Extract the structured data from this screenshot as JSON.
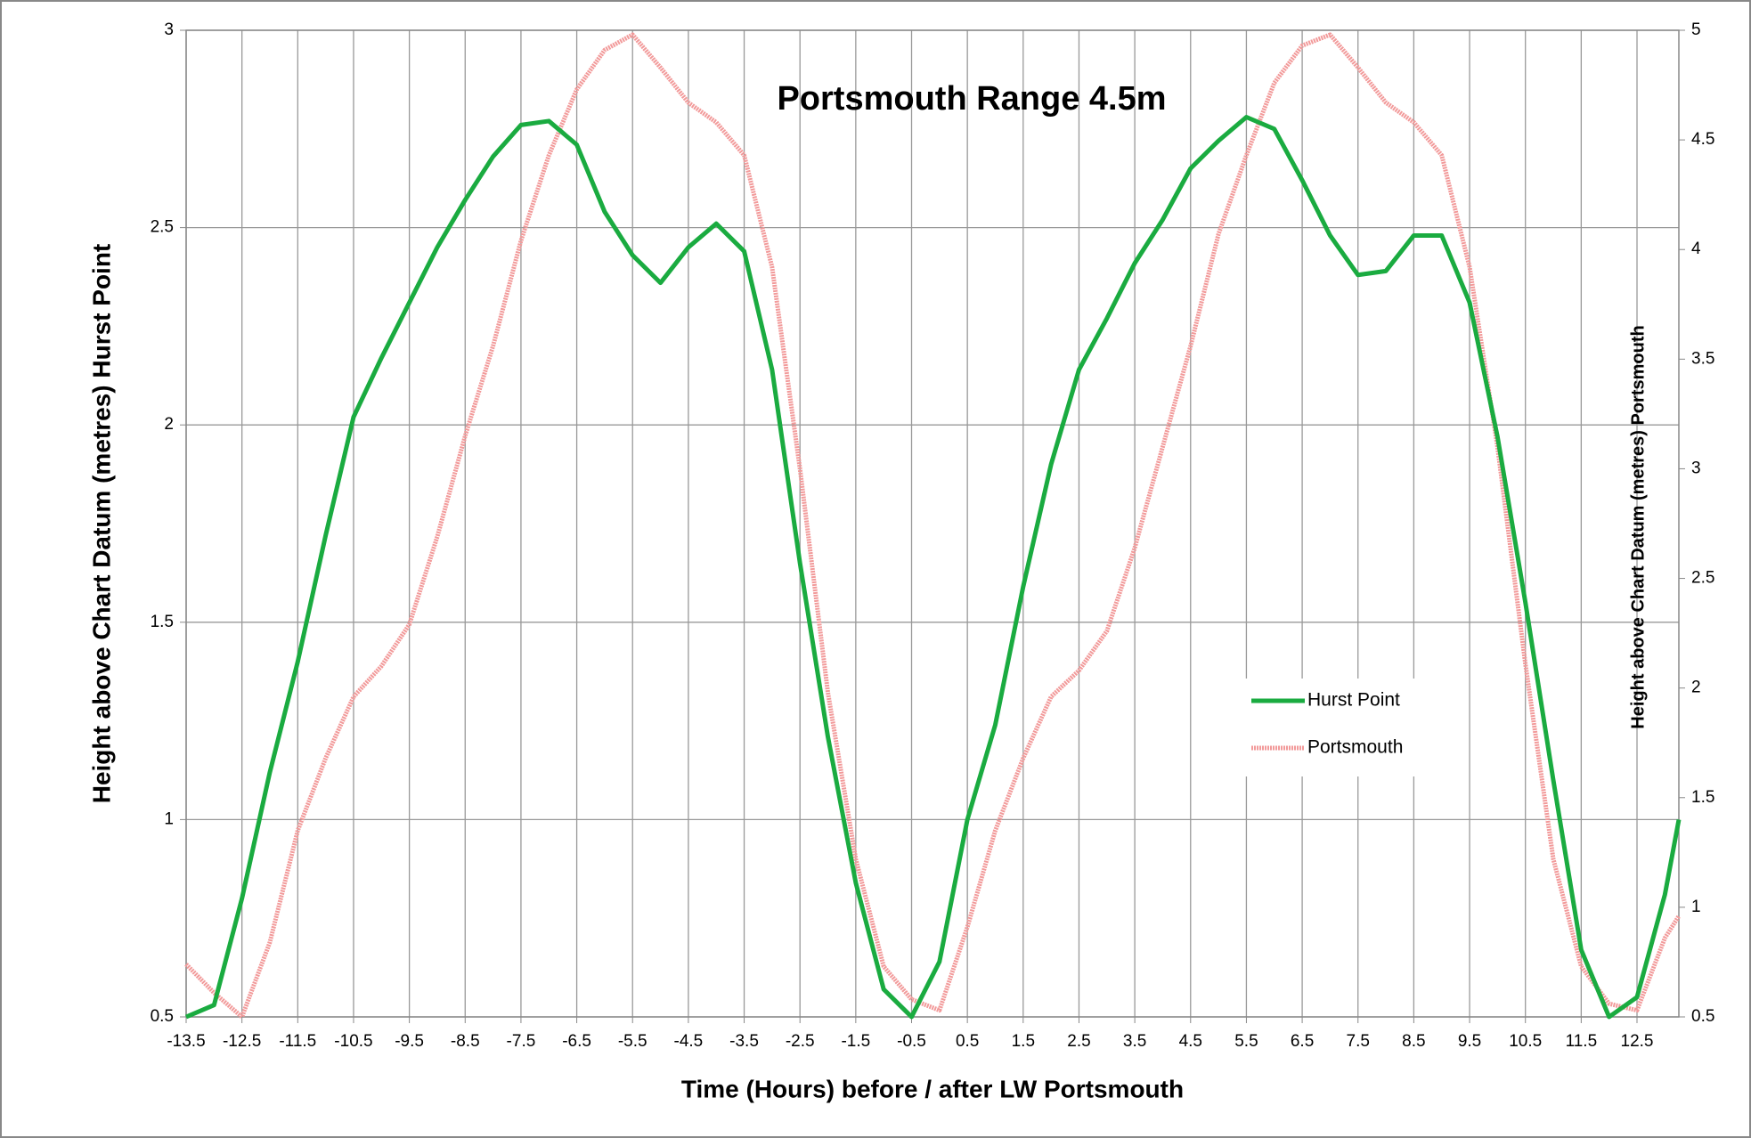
{
  "chart_data": {
    "type": "line",
    "title": "Portsmouth Range 4.5m",
    "x_label": "Time (Hours) before / after LW Portsmouth",
    "y_label": "Height above Chart Datum (metres) Hurst Point",
    "y2_label": "Height above Chart Datum (metres) Portsmouth",
    "x": [
      -13.5,
      -13,
      -12.5,
      -12,
      -11.5,
      -11,
      -10.5,
      -10,
      -9.5,
      -9,
      -8.5,
      -8,
      -7.5,
      -7,
      -6.5,
      -6,
      -5.5,
      -5,
      -4.5,
      -4,
      -3.5,
      -3,
      -2.5,
      -2,
      -1.5,
      -1,
      -0.5,
      0,
      0.5,
      1,
      1.5,
      2,
      2.5,
      3,
      3.5,
      4,
      4.5,
      5,
      5.5,
      6,
      6.5,
      7,
      7.5,
      8,
      8.5,
      9,
      9.5,
      10,
      10.5,
      11,
      11.5,
      12,
      12.5,
      13,
      13.25
    ],
    "series": [
      {
        "name": "Hurst Point",
        "color": "#1aab40",
        "values": [
          0.5,
          0.53,
          0.8,
          1.12,
          1.4,
          1.72,
          2.02,
          2.17,
          2.31,
          2.45,
          2.57,
          2.68,
          2.76,
          2.77,
          2.71,
          2.54,
          2.43,
          2.36,
          2.45,
          2.51,
          2.44,
          2.14,
          1.65,
          1.21,
          0.84,
          0.57,
          0.5,
          0.64,
          1.0,
          1.24,
          1.59,
          1.9,
          2.14,
          2.27,
          2.41,
          2.52,
          2.65,
          2.72,
          2.78,
          2.75,
          2.62,
          2.48,
          2.38,
          2.39,
          2.48,
          2.48,
          2.31,
          1.97,
          1.55,
          1.1,
          0.67,
          0.5,
          0.55,
          0.81,
          1.0
        ]
      },
      {
        "name": "Portsmouth",
        "color": "#f29a9a",
        "axis": "y2",
        "values": [
          0.74,
          0.61,
          0.5,
          0.84,
          1.35,
          1.68,
          1.96,
          2.1,
          2.29,
          2.69,
          3.15,
          3.56,
          4.04,
          4.43,
          4.73,
          4.91,
          4.98,
          4.83,
          4.67,
          4.58,
          4.43,
          3.92,
          3.0,
          1.98,
          1.22,
          0.73,
          0.58,
          0.53,
          0.91,
          1.35,
          1.68,
          1.96,
          2.08,
          2.26,
          2.64,
          3.1,
          3.56,
          4.07,
          4.43,
          4.76,
          4.93,
          4.98,
          4.83,
          4.67,
          4.58,
          4.43,
          3.92,
          3.1,
          2.11,
          1.22,
          0.73,
          0.56,
          0.53,
          0.86,
          0.96
        ]
      }
    ],
    "xlim": [
      -13.5,
      13.25
    ],
    "xticks": [
      -13.5,
      -12.5,
      -11.5,
      -10.5,
      -9.5,
      -8.5,
      -7.5,
      -6.5,
      -5.5,
      -4.5,
      -3.5,
      -2.5,
      -1.5,
      -0.5,
      0.5,
      1.5,
      2.5,
      3.5,
      4.5,
      5.5,
      6.5,
      7.5,
      8.5,
      9.5,
      10.5,
      11.5,
      12.5
    ],
    "ylim": [
      0.5,
      3
    ],
    "yticks": [
      0.5,
      1,
      1.5,
      2,
      2.5,
      3
    ],
    "y2lim": [
      0.5,
      5
    ],
    "y2ticks": [
      0.5,
      1,
      1.5,
      2,
      2.5,
      3,
      3.5,
      4,
      4.5,
      5
    ],
    "grid": true
  }
}
